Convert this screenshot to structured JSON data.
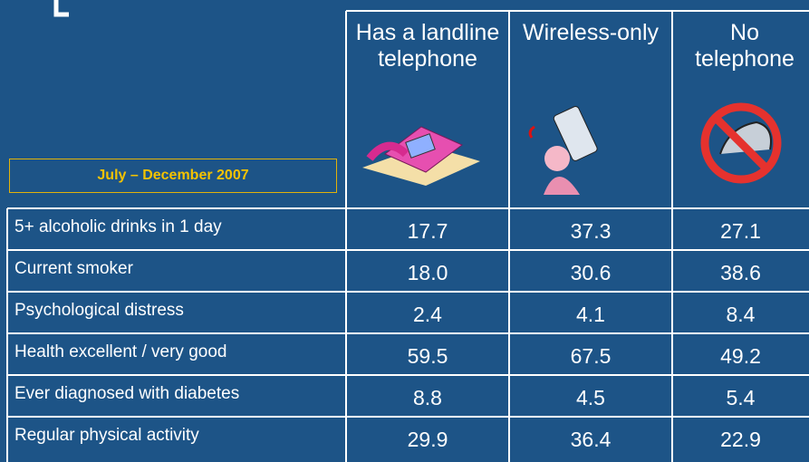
{
  "table": {
    "caption": "July – December 2007",
    "columns": [
      "Has a landline telephone",
      "Wireless-only",
      "No telephone"
    ],
    "rows": [
      [
        "5+ alcoholic drinks in 1 day",
        "17.7",
        "37.3",
        "27.1"
      ],
      [
        "Current smoker",
        "18.0",
        "30.6",
        "38.6"
      ],
      [
        "Psychological distress",
        "2.4",
        "4.1",
        "8.4"
      ],
      [
        "Health excellent / very good",
        "59.5",
        "67.5",
        "49.2"
      ],
      [
        "Ever diagnosed with diabetes",
        "8.8",
        "4.5",
        "5.4"
      ],
      [
        "Regular physical activity",
        "29.9",
        "36.4",
        "22.9"
      ]
    ]
  }
}
